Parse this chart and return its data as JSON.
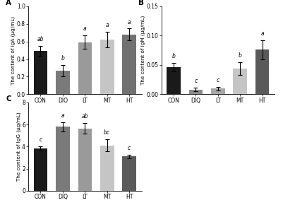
{
  "panels": [
    {
      "label": "A",
      "ylabel": "The content of IgA (μg/mL)",
      "ylim": [
        0,
        1.0
      ],
      "yticks": [
        0.0,
        0.2,
        0.4,
        0.6,
        0.8,
        1.0
      ],
      "yticklabels": [
        "0.0",
        "0.2",
        "0.4",
        "0.6",
        "0.8",
        "1.0"
      ],
      "categories": [
        "CON",
        "DIQ",
        "LT",
        "MT",
        "HT"
      ],
      "values": [
        0.49,
        0.27,
        0.59,
        0.62,
        0.68
      ],
      "errors": [
        0.055,
        0.065,
        0.075,
        0.09,
        0.065
      ],
      "sig_labels": [
        "ab",
        "b",
        "a",
        "a",
        "a"
      ],
      "colors": [
        "#1a1a1a",
        "#7a7a7a",
        "#9a9a9a",
        "#c5c5c5",
        "#717171"
      ]
    },
    {
      "label": "B",
      "ylabel": "The content of IgM (μg/mL)",
      "ylim": [
        0,
        0.15
      ],
      "yticks": [
        0.0,
        0.05,
        0.1,
        0.15
      ],
      "yticklabels": [
        "0.00",
        "0.05",
        "0.10",
        "0.15"
      ],
      "categories": [
        "CON",
        "DIQ",
        "LT",
        "MT",
        "HT"
      ],
      "values": [
        0.046,
        0.008,
        0.01,
        0.044,
        0.076
      ],
      "errors": [
        0.007,
        0.003,
        0.003,
        0.011,
        0.016
      ],
      "sig_labels": [
        "b",
        "c",
        "c",
        "b",
        "a"
      ],
      "colors": [
        "#1a1a1a",
        "#8a8a8a",
        "#a8a8a8",
        "#c5c5c5",
        "#5a5a5a"
      ]
    },
    {
      "label": "C",
      "ylabel": "The content of IgG (μg/mL)",
      "ylim": [
        0,
        8
      ],
      "yticks": [
        0,
        2,
        4,
        6,
        8
      ],
      "yticklabels": [
        "0",
        "2",
        "4",
        "6",
        "8"
      ],
      "categories": [
        "CON",
        "DIQ",
        "LT",
        "MT",
        "HT"
      ],
      "values": [
        3.85,
        5.8,
        5.65,
        4.1,
        3.1
      ],
      "errors": [
        0.18,
        0.4,
        0.5,
        0.55,
        0.18
      ],
      "sig_labels": [
        "c",
        "a",
        "ab",
        "bc",
        "c"
      ],
      "colors": [
        "#1a1a1a",
        "#7a7a7a",
        "#9a9a9a",
        "#c5c5c5",
        "#5a5a5a"
      ]
    }
  ],
  "background_color": "#ffffff",
  "bar_width": 0.62,
  "fontsize_tick": 5.5,
  "fontsize_ylabel": 5.2,
  "fontsize_panel": 7.5,
  "fontsize_sig": 5.5
}
